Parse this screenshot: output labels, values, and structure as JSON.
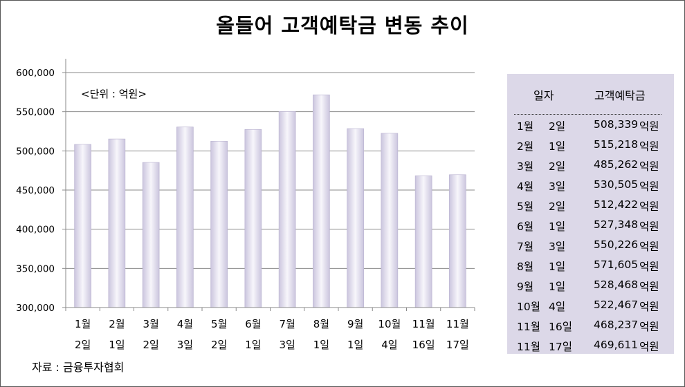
{
  "title": "올들어 고객예탁금 변동 추이",
  "unit_note": "<단위 : 억원>",
  "source": "자료 : 금융투자협회",
  "table": {
    "header_date": "일자",
    "header_value": "고객예탁금",
    "unit": "억원",
    "rows": [
      {
        "month": "1월",
        "day": "2일",
        "value": "508,339"
      },
      {
        "month": "2월",
        "day": "1일",
        "value": "515,218"
      },
      {
        "month": "3월",
        "day": "2일",
        "value": "485,262"
      },
      {
        "month": "4월",
        "day": "3일",
        "value": "530,505"
      },
      {
        "month": "5월",
        "day": "2일",
        "value": "512,422"
      },
      {
        "month": "6월",
        "day": "1일",
        "value": "527,348"
      },
      {
        "month": "7월",
        "day": "3일",
        "value": "550,226"
      },
      {
        "month": "8월",
        "day": "1일",
        "value": "571,605"
      },
      {
        "month": "9월",
        "day": "1일",
        "value": "528,468"
      },
      {
        "month": "10월",
        "day": "4일",
        "value": "522,467"
      },
      {
        "month": "11월",
        "day": "16일",
        "value": "468,237"
      },
      {
        "month": "11월",
        "day": "17일",
        "value": "469,611"
      }
    ]
  },
  "chart_data": {
    "type": "bar",
    "title": "올들어 고객예탁금 변동 추이",
    "categories": [
      [
        "1월",
        "2일"
      ],
      [
        "2월",
        "1일"
      ],
      [
        "3월",
        "2일"
      ],
      [
        "4월",
        "3일"
      ],
      [
        "5월",
        "2일"
      ],
      [
        "6월",
        "1일"
      ],
      [
        "7월",
        "3일"
      ],
      [
        "8월",
        "1일"
      ],
      [
        "9월",
        "1일"
      ],
      [
        "10월",
        "4일"
      ],
      [
        "11월",
        "16일"
      ],
      [
        "11월",
        "17일"
      ]
    ],
    "values": [
      508339,
      515218,
      485262,
      530505,
      512422,
      527348,
      550226,
      571605,
      528468,
      522467,
      468237,
      469611
    ],
    "ylim": [
      300000,
      600000
    ],
    "yticks": [
      300000,
      350000,
      400000,
      450000,
      500000,
      550000,
      600000
    ],
    "ytick_labels": [
      "300,000",
      "350,000",
      "400,000",
      "450,000",
      "500,000",
      "550,000",
      "600,000"
    ],
    "grid": true,
    "bar_colors": [
      "#c9c3dc",
      "#f6f5fa",
      "#c9c3dc"
    ]
  }
}
